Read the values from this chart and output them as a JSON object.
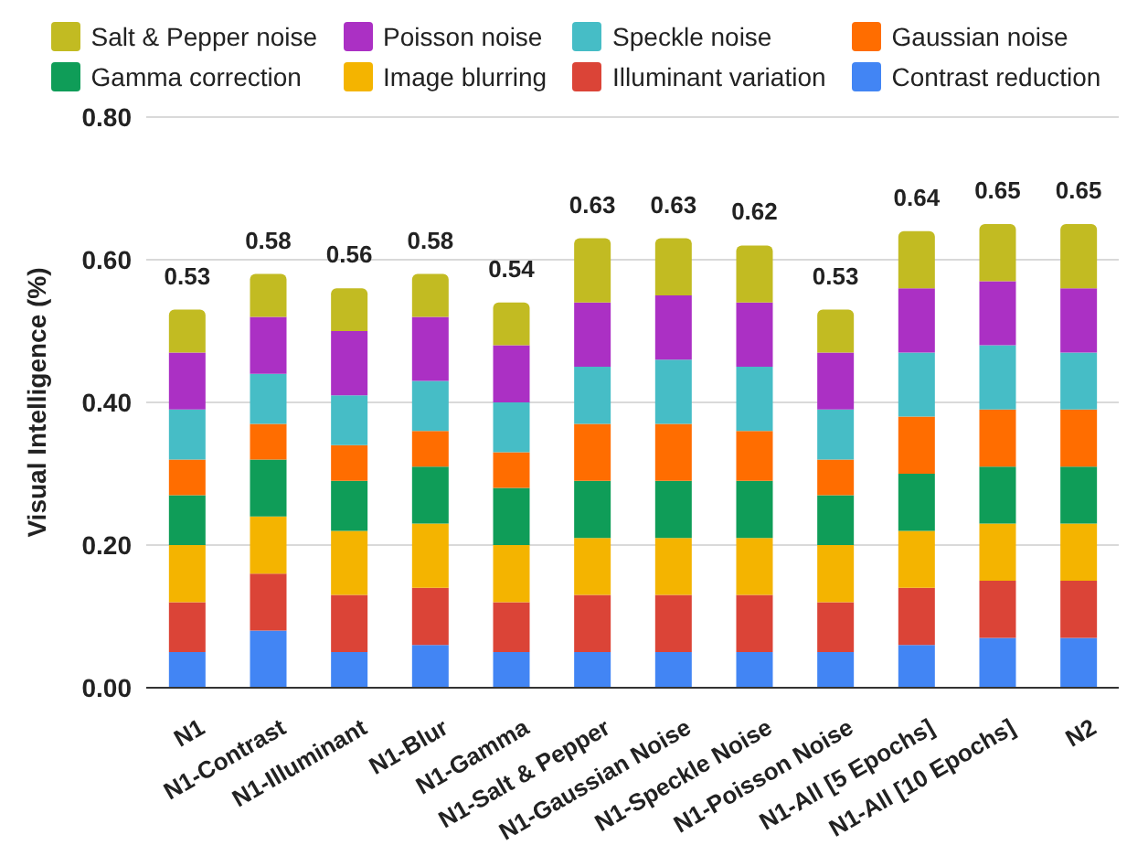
{
  "chart_data": {
    "type": "bar",
    "stacked": true,
    "ylabel": "Visual Intelligence (%)",
    "categories": [
      "N1",
      "N1-Contrast",
      "N1-Illuminant",
      "N1-Blur",
      "N1-Gamma",
      "N1-Salt & Pepper",
      "N1-Gaussian Noise",
      "N1-Speckle Noise",
      "N1-Poisson Noise",
      "N1-All [5 Epochs]",
      "N1-All [10 Epochs]",
      "N2"
    ],
    "series": [
      {
        "name": "Contrast reduction",
        "color": "#4285f4",
        "values": [
          0.05,
          0.08,
          0.05,
          0.06,
          0.05,
          0.05,
          0.05,
          0.05,
          0.05,
          0.06,
          0.07,
          0.07
        ]
      },
      {
        "name": "Illuminant variation",
        "color": "#db4437",
        "values": [
          0.07,
          0.08,
          0.08,
          0.08,
          0.07,
          0.08,
          0.08,
          0.08,
          0.07,
          0.08,
          0.08,
          0.08
        ]
      },
      {
        "name": "Image blurring",
        "color": "#f4b400",
        "values": [
          0.08,
          0.08,
          0.09,
          0.09,
          0.08,
          0.08,
          0.08,
          0.08,
          0.08,
          0.08,
          0.08,
          0.08
        ]
      },
      {
        "name": "Gamma correction",
        "color": "#0f9d58",
        "values": [
          0.07,
          0.08,
          0.07,
          0.08,
          0.08,
          0.08,
          0.08,
          0.08,
          0.07,
          0.08,
          0.08,
          0.08
        ]
      },
      {
        "name": "Gaussian noise",
        "color": "#ff6d00",
        "values": [
          0.05,
          0.05,
          0.05,
          0.05,
          0.05,
          0.08,
          0.08,
          0.07,
          0.05,
          0.08,
          0.08,
          0.08
        ]
      },
      {
        "name": "Speckle noise",
        "color": "#46bdc6",
        "values": [
          0.07,
          0.07,
          0.07,
          0.07,
          0.07,
          0.08,
          0.09,
          0.09,
          0.07,
          0.09,
          0.09,
          0.08
        ]
      },
      {
        "name": "Poisson noise",
        "color": "#ab30c4",
        "values": [
          0.08,
          0.08,
          0.09,
          0.09,
          0.08,
          0.09,
          0.09,
          0.09,
          0.08,
          0.09,
          0.09,
          0.09
        ]
      },
      {
        "name": "Salt & Pepper noise",
        "color": "#c2bb22",
        "values": [
          0.06,
          0.06,
          0.06,
          0.06,
          0.06,
          0.09,
          0.08,
          0.08,
          0.06,
          0.08,
          0.08,
          0.09
        ]
      }
    ],
    "totals": [
      "0.53",
      "0.58",
      "0.56",
      "0.58",
      "0.54",
      "0.63",
      "0.63",
      "0.62",
      "0.53",
      "0.64",
      "0.65",
      "0.65"
    ],
    "ylim": [
      0,
      0.8
    ],
    "yticks": [
      {
        "value": 0,
        "label": "0.00"
      },
      {
        "value": 0.2,
        "label": "0.20"
      },
      {
        "value": 0.4,
        "label": "0.40"
      },
      {
        "value": 0.6,
        "label": "0.60"
      },
      {
        "value": 0.8,
        "label": "0.80"
      }
    ],
    "grid": "y",
    "legend": "top"
  }
}
